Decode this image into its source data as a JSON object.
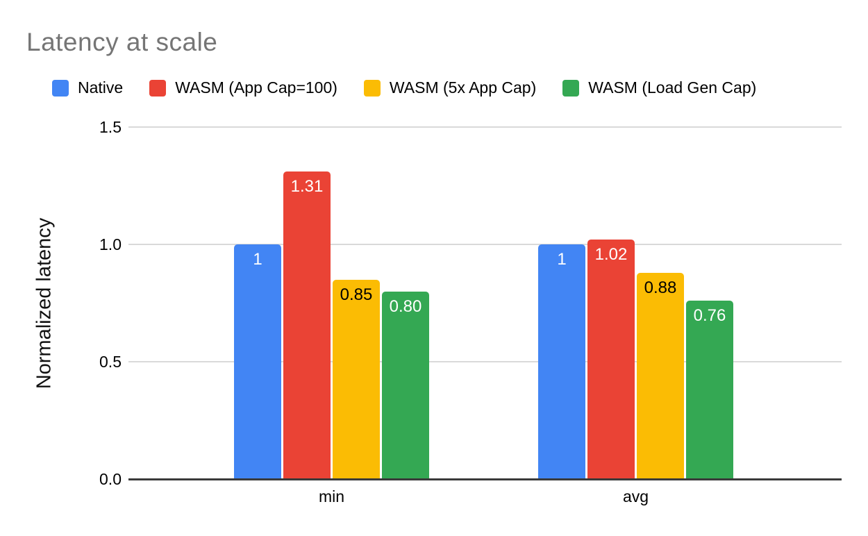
{
  "chart_data": {
    "type": "bar",
    "title": "Latency at scale",
    "categories": [
      "min",
      "avg"
    ],
    "series": [
      {
        "name": "Native",
        "color": "#4285F4",
        "label_color": "#ffffff",
        "values": [
          1.0,
          1.0
        ],
        "labels": [
          "1",
          "1"
        ]
      },
      {
        "name": "WASM (App Cap=100)",
        "color": "#EA4335",
        "label_color": "#ffffff",
        "values": [
          1.31,
          1.02
        ],
        "labels": [
          "1.31",
          "1.02"
        ]
      },
      {
        "name": "WASM (5x App Cap)",
        "color": "#FBBC04",
        "label_color": "#000000",
        "values": [
          0.85,
          0.88
        ],
        "labels": [
          "0.85",
          "0.88"
        ]
      },
      {
        "name": "WASM (Load Gen Cap)",
        "color": "#34A853",
        "label_color": "#ffffff",
        "values": [
          0.8,
          0.76
        ],
        "labels": [
          "0.80",
          "0.76"
        ]
      }
    ],
    "xlabel": "",
    "ylabel": "Normalized latency",
    "ylim": [
      0,
      1.5
    ],
    "y_ticks": [
      {
        "value": 0.0,
        "label": "0.0"
      },
      {
        "value": 0.5,
        "label": "0.5"
      },
      {
        "value": 1.0,
        "label": "1.0"
      },
      {
        "value": 1.5,
        "label": "1.5"
      }
    ],
    "grid": true,
    "legend_position": "top"
  },
  "colors": {
    "background": "#ffffff",
    "title_text": "#757575",
    "gridline": "#d9d9d9",
    "zero_axis_line": "#3a3a3a",
    "tick_text": "#000000"
  }
}
